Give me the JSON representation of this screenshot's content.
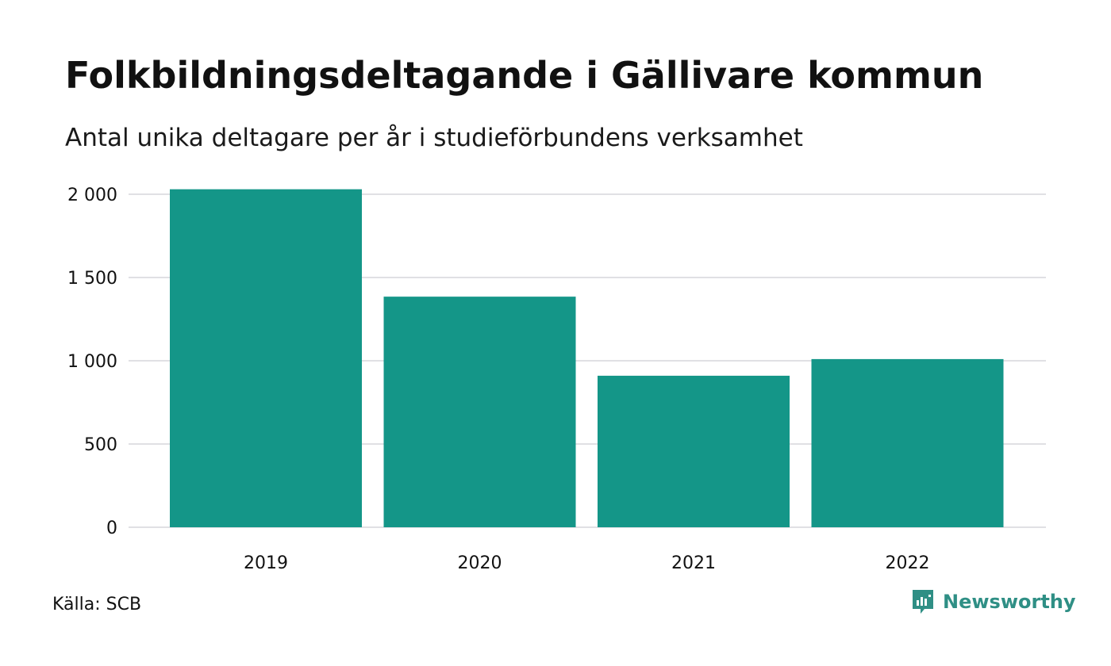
{
  "header": {
    "title": "Folkbildningsdeltagande i Gällivare kommun",
    "subtitle": "Antal unika deltagare per år i studieförbundens verksamhet"
  },
  "footer": {
    "source": "Källa: SCB",
    "brand": "Newsworthy"
  },
  "colors": {
    "bar": "#149688",
    "grid": "#e0e0e4",
    "brand": "#2f8f85"
  },
  "chart_data": {
    "type": "bar",
    "categories": [
      "2019",
      "2020",
      "2021",
      "2022"
    ],
    "values": [
      2030,
      1385,
      910,
      1010
    ],
    "ylim": [
      0,
      2000
    ],
    "yticks": [
      0,
      500,
      1000,
      1500,
      2000
    ],
    "ytick_labels": [
      "0",
      "500",
      "1 000",
      "1 500",
      "2 000"
    ],
    "xlabel": "",
    "ylabel": "",
    "grid": true
  }
}
